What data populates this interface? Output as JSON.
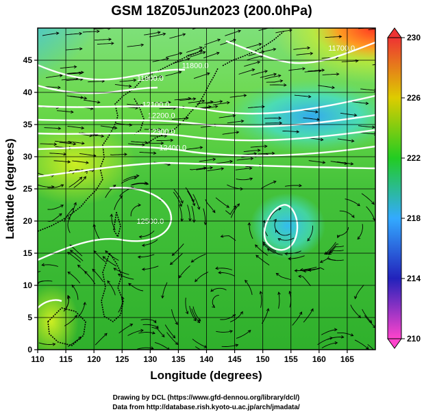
{
  "title": "GSM 18Z05Jun2023 (200.0hPa)",
  "map": {
    "xlabel": "Longitude (degrees)",
    "ylabel": "Latitude  (degrees)",
    "xlim": [
      110,
      170
    ],
    "ylim": [
      0,
      50
    ],
    "x_ticks": [
      110,
      115,
      120,
      125,
      130,
      135,
      140,
      145,
      150,
      155,
      160,
      165
    ],
    "y_ticks": [
      0,
      5,
      10,
      15,
      20,
      25,
      30,
      35,
      40,
      45
    ],
    "grid": true,
    "fill_field": "temperature",
    "contour_field": "geopotential height",
    "vector_field": "wind streamlines"
  },
  "colorbar": {
    "ticks": [
      210,
      214,
      218,
      222,
      226,
      230
    ],
    "vmin": 210,
    "vmax": 230,
    "colors": [
      "#ff44cc",
      "#2222bb",
      "#33aaff",
      "#22cc22",
      "#ddcc00",
      "#ee3333"
    ]
  },
  "contour_labels": [
    {
      "text": "11700.0",
      "lon": 164,
      "lat": 46.5
    },
    {
      "text": "11800.0",
      "lon": 138,
      "lat": 43.8
    },
    {
      "text": "11900.0",
      "lon": 130,
      "lat": 41.8
    },
    {
      "text": "12100.0",
      "lon": 131,
      "lat": 37.7
    },
    {
      "text": "12200.0",
      "lon": 132,
      "lat": 36.0
    },
    {
      "text": "12300.0",
      "lon": 132,
      "lat": 33.5
    },
    {
      "text": "12400.0",
      "lon": 134,
      "lat": 31.0
    },
    {
      "text": "12500.0",
      "lon": 130,
      "lat": 19.6
    }
  ],
  "credits": [
    "Drawing by DCL (https://www.gfd-dennou.org/library/dcl/)",
    "Data from http://database.rish.kyoto-u.ac.jp/arch/jmadata/"
  ]
}
